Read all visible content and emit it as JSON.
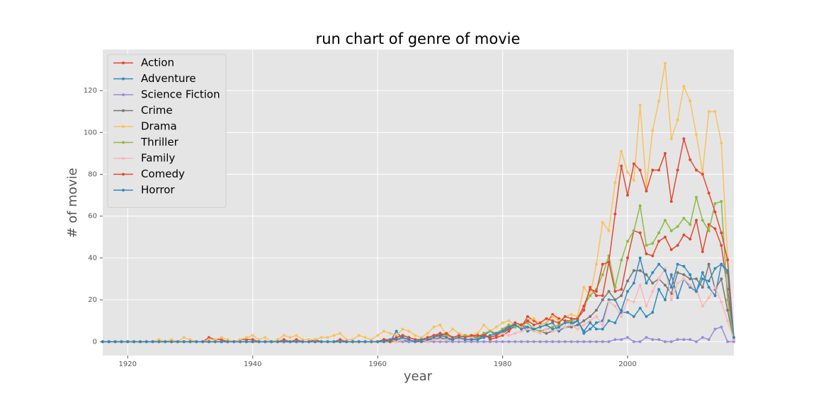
{
  "chart_data": {
    "type": "line",
    "title": "run chart of genre of movie",
    "x_label": "year",
    "y_label": "# of movie",
    "x": [
      1916,
      1917,
      1918,
      1919,
      1920,
      1921,
      1922,
      1923,
      1924,
      1925,
      1926,
      1927,
      1928,
      1929,
      1930,
      1931,
      1932,
      1933,
      1934,
      1935,
      1936,
      1937,
      1938,
      1939,
      1940,
      1941,
      1942,
      1943,
      1944,
      1945,
      1946,
      1947,
      1948,
      1949,
      1950,
      1951,
      1952,
      1953,
      1954,
      1955,
      1956,
      1957,
      1958,
      1959,
      1960,
      1961,
      1962,
      1963,
      1964,
      1965,
      1966,
      1967,
      1968,
      1969,
      1970,
      1971,
      1972,
      1973,
      1974,
      1975,
      1976,
      1977,
      1978,
      1979,
      1980,
      1981,
      1982,
      1983,
      1984,
      1985,
      1986,
      1987,
      1988,
      1989,
      1990,
      1991,
      1992,
      1993,
      1994,
      1995,
      1996,
      1997,
      1998,
      1999,
      2000,
      2001,
      2002,
      2003,
      2004,
      2005,
      2006,
      2007,
      2008,
      2009,
      2010,
      2011,
      2012,
      2013,
      2014,
      2015,
      2016,
      2017
    ],
    "xlim": [
      1916,
      2017
    ],
    "xticks": [
      1920,
      1940,
      1960,
      1980,
      2000
    ],
    "ylim": [
      -6.65,
      139.65
    ],
    "yticks": [
      0,
      20,
      40,
      60,
      80,
      100,
      120
    ],
    "grid": true,
    "legend": "upper left",
    "series": [
      {
        "name": "Action",
        "color": "#E24A33",
        "values": [
          0,
          0,
          0,
          0,
          0,
          0,
          0,
          0,
          0,
          0,
          0,
          0,
          0,
          0,
          0,
          0,
          0,
          2,
          1,
          1,
          0,
          0,
          1,
          1,
          1,
          0,
          0,
          0,
          0,
          1,
          0,
          1,
          0,
          0,
          1,
          0,
          0,
          0,
          1,
          0,
          0,
          0,
          0,
          0,
          0,
          1,
          1,
          2,
          3,
          2,
          1,
          1,
          2,
          3,
          4,
          3,
          2,
          2,
          3,
          3,
          2,
          4,
          1,
          2,
          3,
          5,
          8,
          7,
          12,
          10,
          8,
          9,
          13,
          11,
          10,
          10,
          11,
          15,
          26,
          22,
          22,
          38,
          24,
          25,
          40,
          53,
          52,
          42,
          41,
          48,
          50,
          44,
          46,
          51,
          49,
          58,
          43,
          56,
          54,
          46,
          25,
          1
        ]
      },
      {
        "name": "Adventure",
        "color": "#348ABD",
        "values": [
          0,
          0,
          0,
          0,
          0,
          0,
          0,
          0,
          0,
          0,
          0,
          0,
          0,
          0,
          0,
          0,
          0,
          0,
          0,
          0,
          0,
          0,
          0,
          0,
          0,
          0,
          0,
          0,
          0,
          0,
          0,
          0,
          0,
          0,
          0,
          0,
          0,
          0,
          0,
          0,
          0,
          0,
          0,
          0,
          0,
          1,
          0,
          5,
          1,
          0,
          0,
          1,
          0,
          1,
          2,
          1,
          1,
          2,
          1,
          1,
          2,
          3,
          5,
          3,
          4,
          6,
          7,
          8,
          5,
          6,
          7,
          8,
          9,
          5,
          7,
          8,
          10,
          4,
          6,
          9,
          10,
          20,
          20,
          14,
          14,
          12,
          16,
          12,
          14,
          25,
          20,
          32,
          21,
          30,
          26,
          24,
          33,
          26,
          22,
          37,
          33,
          1
        ]
      },
      {
        "name": "Science Fiction",
        "color": "#988ED5",
        "values": [
          0,
          0,
          0,
          0,
          0,
          0,
          0,
          0,
          0,
          0,
          0,
          0,
          0,
          0,
          0,
          0,
          0,
          0,
          0,
          0,
          0,
          0,
          0,
          0,
          0,
          0,
          0,
          0,
          0,
          0,
          0,
          0,
          0,
          0,
          0,
          0,
          0,
          0,
          0,
          0,
          0,
          0,
          0,
          0,
          0,
          0,
          0,
          0,
          0,
          0,
          0,
          0,
          0,
          0,
          0,
          0,
          0,
          0,
          0,
          0,
          0,
          0,
          0,
          0,
          0,
          0,
          0,
          0,
          0,
          0,
          0,
          0,
          0,
          0,
          0,
          0,
          0,
          0,
          0,
          0,
          0,
          0,
          1,
          1,
          2,
          0,
          0,
          2,
          1,
          1,
          0,
          0,
          1,
          1,
          1,
          0,
          2,
          1,
          6,
          7,
          0,
          0
        ]
      },
      {
        "name": "Crime",
        "color": "#777777",
        "values": [
          0,
          0,
          0,
          0,
          0,
          0,
          0,
          0,
          0,
          0,
          0,
          0,
          0,
          0,
          0,
          0,
          0,
          0,
          0,
          0,
          0,
          0,
          0,
          0,
          0,
          0,
          0,
          0,
          0,
          0,
          0,
          0,
          0,
          0,
          0,
          0,
          0,
          0,
          0,
          0,
          0,
          0,
          0,
          0,
          0,
          0,
          0,
          1,
          2,
          1,
          0,
          0,
          1,
          1,
          2,
          1,
          1,
          2,
          1,
          1,
          1,
          3,
          5,
          4,
          6,
          7,
          9,
          8,
          7,
          6,
          5,
          4,
          5,
          6,
          7,
          7,
          8,
          10,
          12,
          15,
          20,
          24,
          20,
          22,
          29,
          34,
          34,
          32,
          28,
          30,
          27,
          23,
          33,
          32,
          30,
          30,
          26,
          37,
          25,
          30,
          15,
          1
        ]
      },
      {
        "name": "Drama",
        "color": "#FBC15E",
        "values": [
          0,
          0,
          0,
          0,
          0,
          0,
          0,
          0,
          0,
          1,
          0,
          1,
          0,
          2,
          1,
          0,
          0,
          1,
          1,
          2,
          1,
          0,
          1,
          2,
          3,
          1,
          2,
          0,
          1,
          3,
          2,
          3,
          1,
          1,
          1,
          2,
          2,
          3,
          4,
          1,
          1,
          3,
          2,
          1,
          3,
          5,
          4,
          3,
          6,
          5,
          3,
          2,
          4,
          7,
          8,
          3,
          6,
          4,
          3,
          3,
          4,
          8,
          5,
          7,
          9,
          10,
          8,
          7,
          10,
          11,
          8,
          9,
          12,
          10,
          12,
          13,
          12,
          26,
          22,
          37,
          57,
          53,
          76,
          91,
          81,
          77,
          113,
          74,
          101,
          115,
          133,
          97,
          106,
          122,
          115,
          99,
          81,
          110,
          110,
          95,
          40,
          2
        ]
      },
      {
        "name": "Thriller",
        "color": "#8EBA42",
        "values": [
          0,
          0,
          0,
          0,
          0,
          0,
          0,
          0,
          0,
          0,
          0,
          0,
          0,
          0,
          0,
          0,
          0,
          0,
          0,
          0,
          0,
          0,
          0,
          0,
          0,
          0,
          0,
          0,
          0,
          0,
          0,
          0,
          0,
          0,
          0,
          0,
          0,
          0,
          0,
          0,
          0,
          0,
          0,
          0,
          0,
          0,
          0,
          1,
          1,
          2,
          1,
          1,
          2,
          2,
          3,
          3,
          2,
          2,
          3,
          2,
          2,
          4,
          5,
          4,
          6,
          8,
          7,
          8,
          9,
          6,
          5,
          6,
          7,
          8,
          9,
          10,
          11,
          17,
          22,
          25,
          32,
          41,
          26,
          39,
          48,
          53,
          65,
          46,
          47,
          52,
          58,
          53,
          55,
          59,
          56,
          69,
          58,
          53,
          66,
          67,
          20,
          1
        ]
      },
      {
        "name": "Family",
        "color": "#FFB5B8",
        "values": [
          0,
          0,
          0,
          0,
          0,
          0,
          0,
          0,
          0,
          0,
          0,
          0,
          0,
          0,
          0,
          0,
          0,
          0,
          0,
          0,
          0,
          0,
          0,
          0,
          0,
          0,
          0,
          0,
          0,
          0,
          0,
          0,
          0,
          0,
          0,
          0,
          0,
          0,
          0,
          0,
          0,
          0,
          0,
          0,
          0,
          0,
          1,
          0,
          1,
          1,
          0,
          1,
          0,
          1,
          1,
          1,
          2,
          1,
          1,
          2,
          1,
          2,
          3,
          3,
          4,
          3,
          4,
          5,
          6,
          5,
          4,
          6,
          5,
          6,
          7,
          8,
          6,
          8,
          10,
          12,
          8,
          19,
          17,
          12,
          20,
          19,
          27,
          17,
          24,
          30,
          35,
          20,
          28,
          30,
          27,
          25,
          17,
          21,
          26,
          19,
          10,
          1
        ]
      },
      {
        "name": "Comedy",
        "color": "#E24A33",
        "values": [
          0,
          0,
          0,
          0,
          0,
          0,
          0,
          0,
          0,
          0,
          0,
          0,
          0,
          0,
          0,
          0,
          0,
          0,
          0,
          0,
          0,
          0,
          0,
          0,
          0,
          0,
          0,
          0,
          0,
          0,
          0,
          0,
          0,
          0,
          0,
          0,
          0,
          0,
          0,
          0,
          0,
          0,
          0,
          0,
          0,
          1,
          0,
          2,
          3,
          2,
          1,
          1,
          2,
          3,
          3,
          4,
          2,
          3,
          2,
          3,
          3,
          3,
          2,
          3,
          5,
          6,
          9,
          8,
          10,
          8,
          9,
          11,
          10,
          9,
          12,
          11,
          11,
          17,
          25,
          24,
          37,
          38,
          61,
          84,
          70,
          85,
          82,
          72,
          82,
          82,
          90,
          67,
          82,
          97,
          87,
          82,
          80,
          71,
          62,
          52,
          39,
          2
        ]
      },
      {
        "name": "Horror",
        "color": "#348ABD",
        "values": [
          0,
          0,
          0,
          0,
          0,
          0,
          0,
          0,
          0,
          0,
          0,
          0,
          0,
          0,
          0,
          0,
          0,
          0,
          0,
          0,
          0,
          0,
          0,
          0,
          0,
          0,
          0,
          0,
          0,
          0,
          0,
          0,
          0,
          0,
          0,
          0,
          0,
          0,
          0,
          0,
          0,
          0,
          0,
          0,
          0,
          0,
          1,
          1,
          2,
          1,
          0,
          1,
          1,
          2,
          3,
          2,
          1,
          2,
          1,
          1,
          1,
          2,
          3,
          4,
          5,
          7,
          8,
          6,
          7,
          6,
          7,
          8,
          6,
          7,
          9,
          9,
          10,
          5,
          9,
          6,
          6,
          10,
          9,
          15,
          24,
          28,
          40,
          28,
          33,
          37,
          34,
          26,
          37,
          36,
          32,
          24,
          30,
          29,
          35,
          37,
          34,
          2
        ]
      }
    ]
  }
}
